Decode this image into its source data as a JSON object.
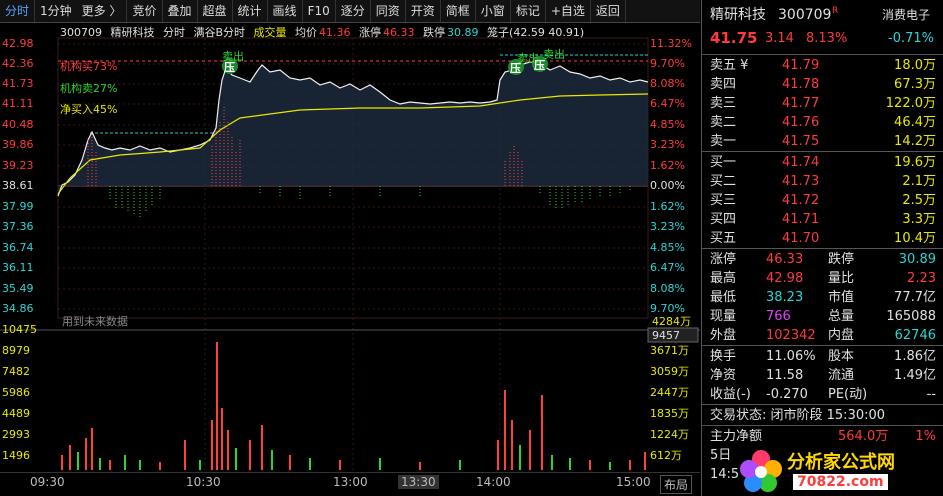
{
  "toolbar": {
    "tabs": [
      "分时",
      "1分钟",
      "更多 〉",
      "竞价",
      "叠加",
      "超盘",
      "统计",
      "画线",
      "F10",
      "逐分",
      "同资",
      "开资",
      "简框",
      "小窗",
      "标记",
      "+自选",
      "返回"
    ]
  },
  "info": {
    "code": "300709",
    "name": "精研科技",
    "mode": "分时",
    "indicator": "满谷B分时",
    "vol_label": "成交量",
    "avg_label": "均价",
    "avg_val": "41.36",
    "limit_up_label": "涨停",
    "limit_up_val": "46.33",
    "limit_down_label": "跌停",
    "limit_down_val": "30.89",
    "cage_label": "笼子(42.59 40.91)"
  },
  "legend": {
    "a": "机构买73%",
    "b": "机构卖27%",
    "c": "净买入45%"
  },
  "price_axis_left": [
    "42.98",
    "42.36",
    "41.73",
    "41.11",
    "40.48",
    "39.86",
    "39.23",
    "38.61",
    "37.99",
    "37.36",
    "36.74",
    "36.11",
    "35.49",
    "34.86"
  ],
  "price_axis_right": [
    "11.32%",
    "9.70%",
    "8.08%",
    "6.47%",
    "4.85%",
    "3.23%",
    "1.62%",
    "0.00%",
    "1.62%",
    "3.23%",
    "4.85%",
    "6.47%",
    "8.08%",
    "9.70%"
  ],
  "future_note": "用到未来数据",
  "volume_axis_left": [
    "10475",
    "8979",
    "7482",
    "5986",
    "4489",
    "2993",
    "1496"
  ],
  "volume_axis_right": [
    "3671万",
    "3059万",
    "2447万",
    "1835万",
    "1224万",
    "612万"
  ],
  "volume_cursor": "9457",
  "volume_right_top": "4284万",
  "time_axis": [
    "09:30",
    "10:30",
    "13:00",
    "13:30",
    "14:00",
    "15:00"
  ],
  "layout_btn": "布局",
  "markers": {
    "sell1": "卖出",
    "sell2": "卖出",
    "sell3": "卖出",
    "press": "压"
  },
  "quote": {
    "name": "精研科技",
    "code": "300709",
    "flag": "R",
    "sector": "消费电子",
    "sector_pct": "-0.71%",
    "price": "41.75",
    "change": "3.14",
    "pct": "8.13%",
    "asks": [
      {
        "label": "卖五 ¥",
        "price": "41.79",
        "vol": "18.0万"
      },
      {
        "label": "卖四",
        "price": "41.78",
        "vol": "67.3万"
      },
      {
        "label": "卖三",
        "price": "41.77",
        "vol": "122.0万"
      },
      {
        "label": "卖二",
        "price": "41.76",
        "vol": "46.4万"
      },
      {
        "label": "卖一",
        "price": "41.75",
        "vol": "14.2万"
      }
    ],
    "bids": [
      {
        "label": "买一",
        "price": "41.74",
        "vol": "19.6万"
      },
      {
        "label": "买二",
        "price": "41.73",
        "vol": "2.1万"
      },
      {
        "label": "买三",
        "price": "41.72",
        "vol": "2.5万"
      },
      {
        "label": "买四",
        "price": "41.71",
        "vol": "3.3万"
      },
      {
        "label": "买五",
        "price": "41.70",
        "vol": "10.4万"
      }
    ],
    "stats": [
      {
        "l1": "涨停",
        "v1": "46.33",
        "l2": "跌停",
        "v2": "30.89"
      },
      {
        "l1": "最高",
        "v1": "42.98",
        "l2": "量比",
        "v2": "2.23"
      },
      {
        "l1": "最低",
        "v1": "38.23",
        "l2": "市值",
        "v2": "77.7亿"
      },
      {
        "l1": "现量",
        "v1": "766",
        "l2": "总量",
        "v2": "165088"
      },
      {
        "l1": "外盘",
        "v1": "102342",
        "l2": "内盘",
        "v2": "62746"
      }
    ],
    "stats2": [
      {
        "l1": "换手",
        "v1": "11.06%",
        "l2": "股本",
        "v2": "1.86亿"
      },
      {
        "l1": "净资",
        "v1": "11.58",
        "l2": "流通",
        "v2": "1.49亿"
      },
      {
        "l1": "收益(-)",
        "v1": "-0.270",
        "l2": "PE(动)",
        "v2": "--"
      }
    ],
    "trade_state": "交易状态: 闭市阶段 15:30:00",
    "main_net_label": "主力净额",
    "main_net_val": "564.0万",
    "main_net_pct": "1%",
    "day_label": "5日",
    "time_stub": "14:5"
  },
  "logo": {
    "text": "分析家公式网",
    "url": "70822.com"
  }
}
